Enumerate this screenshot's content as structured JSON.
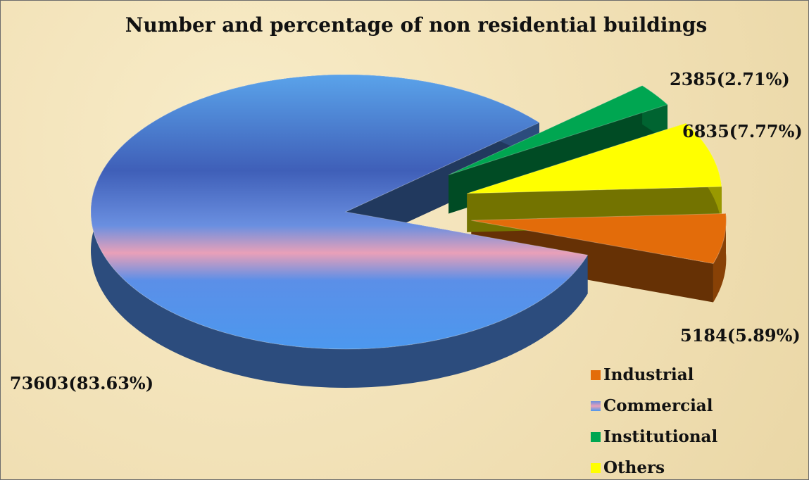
{
  "chart_data": {
    "type": "pie",
    "title": "Number and percentage of non residential buildings",
    "categories": [
      "Industrial",
      "Commercial",
      "Institutional",
      "Others"
    ],
    "values": [
      5184,
      73603,
      2385,
      6835
    ],
    "value_labels": [
      "5184(5.89%)",
      "73603(83.63%)",
      "2385(2.71%)",
      "6835(7.77%)"
    ],
    "colors": [
      "#e36c0a",
      "#4a7fd0",
      "#00a651",
      "#ffff00"
    ],
    "legend": "bottom-right"
  }
}
